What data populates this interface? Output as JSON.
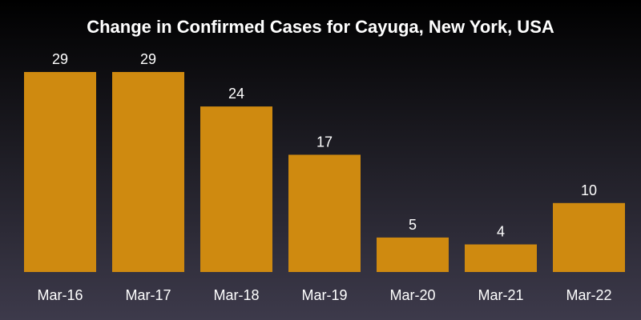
{
  "chart_data": {
    "type": "bar",
    "title": "Change in Confirmed Cases for Cayuga, New York, USA",
    "xlabel": "",
    "ylabel": "",
    "categories": [
      "Mar-16",
      "Mar-17",
      "Mar-18",
      "Mar-19",
      "Mar-20",
      "Mar-21",
      "Mar-22"
    ],
    "values": [
      29,
      29,
      24,
      17,
      5,
      4,
      10
    ],
    "ylim": [
      0,
      29
    ],
    "grid": false,
    "data_labels": true,
    "bar_color": "#cf8a10",
    "text_color": "#ffffff",
    "background_top": "#000000",
    "background_bottom": "#3d3a4b"
  }
}
